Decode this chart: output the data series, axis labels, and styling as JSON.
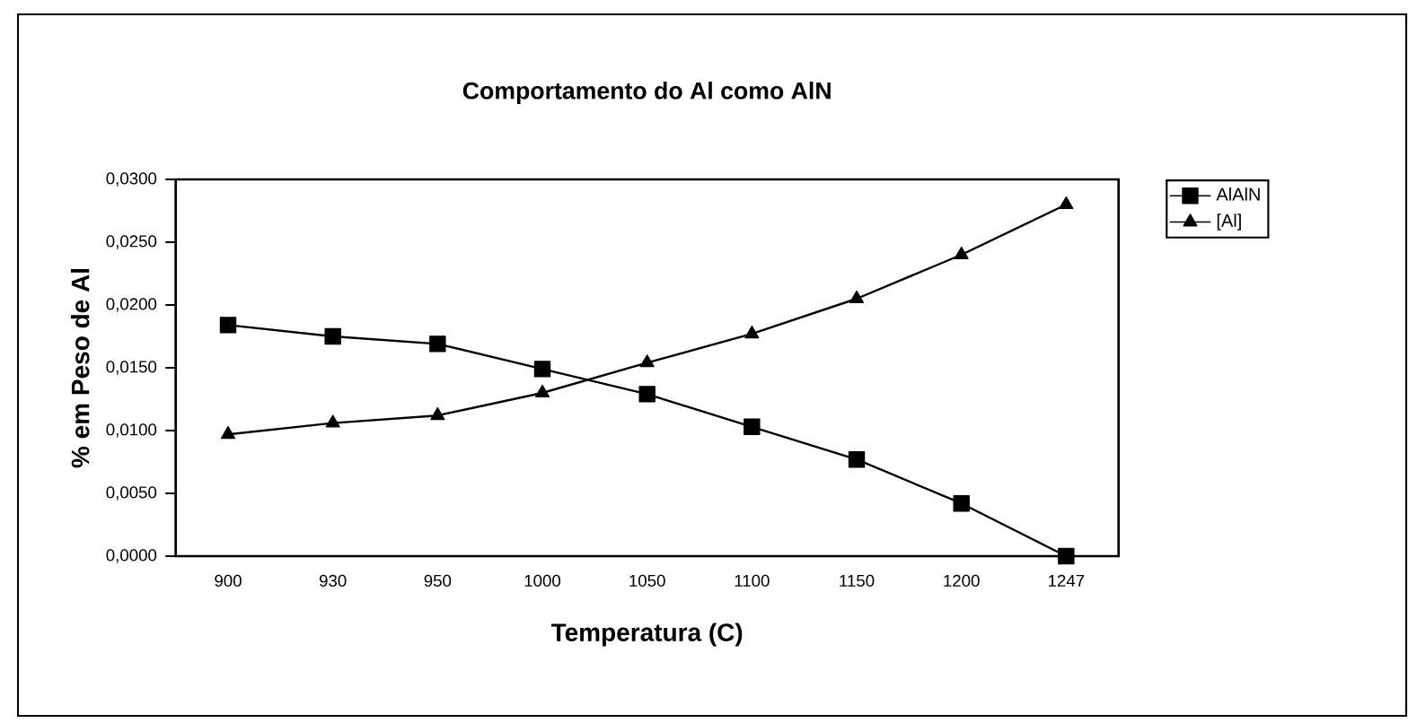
{
  "chart_data": {
    "type": "line",
    "title": "Comportamento do Al como AlN",
    "xlabel": "Temperatura (C)",
    "ylabel": "% em Peso de Al",
    "categories": [
      "900",
      "930",
      "950",
      "1000",
      "1050",
      "1100",
      "1150",
      "1200",
      "1247"
    ],
    "series": [
      {
        "name": "AlAlN",
        "color": "#000000",
        "marker": "square",
        "values": [
          0.0184,
          0.0175,
          0.0169,
          0.0149,
          0.0129,
          0.0103,
          0.0077,
          0.0042,
          0.0
        ]
      },
      {
        "name": "[Al]",
        "color": "#000000",
        "marker": "triangle",
        "values": [
          0.0097,
          0.0106,
          0.0112,
          0.013,
          0.0154,
          0.0177,
          0.0205,
          0.024,
          0.028
        ]
      }
    ],
    "ylim": [
      0,
      0.03
    ],
    "yticks": [
      {
        "value": 0,
        "label": "0,0000"
      },
      {
        "value": 0.005,
        "label": "0,0050"
      },
      {
        "value": 0.01,
        "label": "0,0100"
      },
      {
        "value": 0.015,
        "label": "0,0150"
      },
      {
        "value": 0.02,
        "label": "0,0200"
      },
      {
        "value": 0.025,
        "label": "0,0250"
      },
      {
        "value": 0.03,
        "label": "0,0300"
      }
    ],
    "grid": false,
    "legend": "right",
    "line_style": "solid"
  }
}
